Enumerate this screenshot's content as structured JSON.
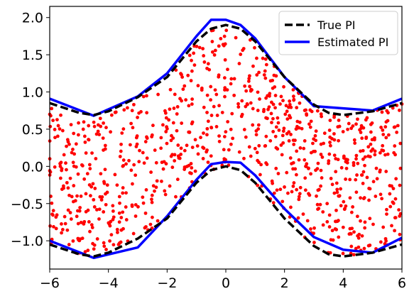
{
  "chart_data": {
    "type": "scatter",
    "title": "",
    "xlabel": "",
    "ylabel": "",
    "xlim": [
      -6,
      6
    ],
    "ylim": [
      -1.38,
      2.15
    ],
    "grid": false,
    "legend_position": "top-right",
    "x_ticks": [
      -6,
      -4,
      -2,
      0,
      2,
      4,
      6
    ],
    "x_tick_labels": [
      "−6",
      "−4",
      "−2",
      "0",
      "2",
      "4",
      "6"
    ],
    "y_ticks": [
      -1.0,
      -0.5,
      0.0,
      0.5,
      1.0,
      1.5,
      2.0
    ],
    "y_tick_labels": [
      "−1.0",
      "−0.5",
      "0.0",
      "0.5",
      "1.0",
      "1.5",
      "2.0"
    ],
    "scatter": {
      "color": "#ff0000",
      "point_count": 900,
      "band_description": "Points scattered uniformly between lower and upper true prediction-interval bounds"
    },
    "series": [
      {
        "name": "True PI",
        "style": "dashed",
        "color": "#000000",
        "bounds": {
          "x": [
            -6.0,
            -5.0,
            -4.5,
            -4.0,
            -3.0,
            -2.0,
            -1.0,
            -0.5,
            0.0,
            0.5,
            1.0,
            2.0,
            3.0,
            3.5,
            4.0,
            5.0,
            6.0
          ],
          "upper": [
            0.85,
            0.72,
            0.69,
            0.74,
            0.93,
            1.2,
            1.68,
            1.85,
            1.9,
            1.85,
            1.68,
            1.2,
            0.83,
            0.72,
            0.69,
            0.74,
            0.85
          ],
          "lower": [
            -1.05,
            -1.18,
            -1.21,
            -1.16,
            -0.97,
            -0.7,
            -0.22,
            -0.05,
            0.0,
            -0.05,
            -0.22,
            -0.7,
            -1.07,
            -1.18,
            -1.21,
            -1.16,
            -1.05
          ]
        }
      },
      {
        "name": "Estimated PI",
        "style": "solid",
        "color": "#0000ff",
        "bounds": {
          "x": [
            -6.0,
            -4.5,
            -3.0,
            -2.0,
            -1.0,
            -0.5,
            0.0,
            0.5,
            1.0,
            2.0,
            3.0,
            4.0,
            5.0,
            6.0
          ],
          "upper": [
            0.91,
            0.68,
            0.94,
            1.25,
            1.75,
            1.97,
            1.97,
            1.9,
            1.72,
            1.2,
            0.81,
            0.78,
            0.75,
            0.91
          ],
          "lower": [
            -1.0,
            -1.23,
            -1.09,
            -0.67,
            -0.18,
            0.03,
            0.06,
            0.05,
            -0.12,
            -0.57,
            -0.95,
            -1.12,
            -1.16,
            -0.96
          ]
        }
      }
    ]
  },
  "legend": {
    "items": [
      {
        "label": "True PI",
        "color": "#000000",
        "style": "dashed"
      },
      {
        "label": "Estimated PI",
        "color": "#0000ff",
        "style": "solid"
      }
    ]
  }
}
